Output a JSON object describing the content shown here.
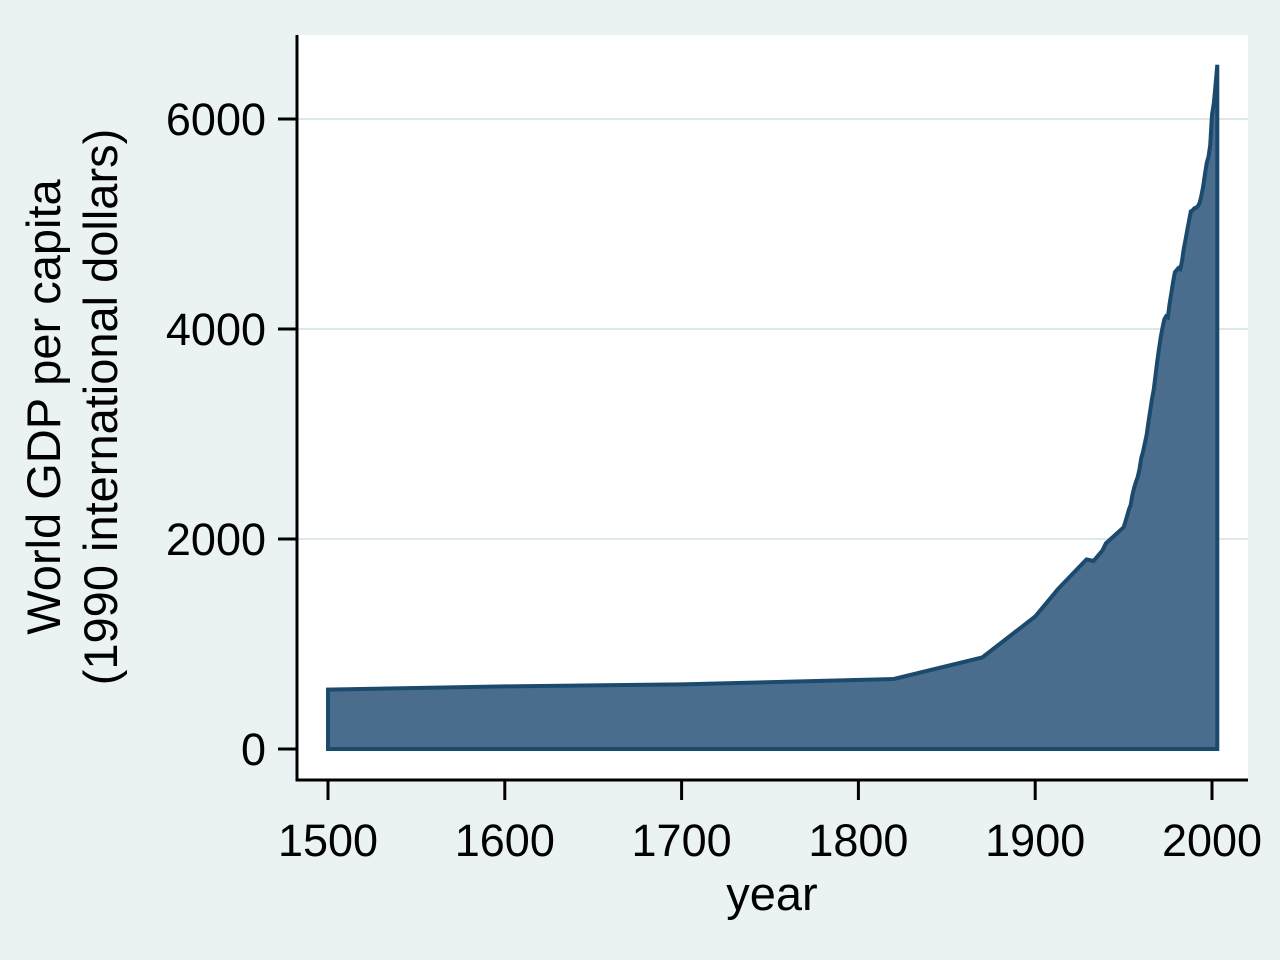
{
  "figure": {
    "kind": "stata-style area chart",
    "background_color": "#eaf2f3",
    "plot_background_color": "#ffffff"
  },
  "chart_data": {
    "type": "area",
    "title": "",
    "xlabel": "year",
    "ylabel_lines": [
      "World GDP per capita",
      "(1990 international dollars)"
    ],
    "x_ticks": [
      1500,
      1600,
      1700,
      1800,
      1900,
      2000
    ],
    "y_ticks": [
      0,
      2000,
      4000,
      6000
    ],
    "xlim": [
      1483,
      2020
    ],
    "ylim": [
      0,
      6800
    ],
    "grid": "horizontal gridlines at 2000, 4000, 6000",
    "legend": "none",
    "series": [
      {
        "name": "World GDP per capita (1990 international dollars)",
        "fill_color": "#4a6d8e",
        "line_color": "#1c4a6d",
        "baseline": 0,
        "points": [
          [
            1500,
            566
          ],
          [
            1600,
            596
          ],
          [
            1700,
            615
          ],
          [
            1820,
            667
          ],
          [
            1870,
            871
          ],
          [
            1900,
            1262
          ],
          [
            1913,
            1526
          ],
          [
            1929,
            1806
          ],
          [
            1933,
            1790
          ],
          [
            1938,
            1890
          ],
          [
            1940,
            1958
          ],
          [
            1950,
            2111
          ],
          [
            1951,
            2165
          ],
          [
            1952,
            2220
          ],
          [
            1953,
            2280
          ],
          [
            1954,
            2325
          ],
          [
            1955,
            2420
          ],
          [
            1956,
            2490
          ],
          [
            1957,
            2545
          ],
          [
            1958,
            2590
          ],
          [
            1959,
            2665
          ],
          [
            1960,
            2773
          ],
          [
            1961,
            2830
          ],
          [
            1962,
            2910
          ],
          [
            1963,
            2990
          ],
          [
            1964,
            3110
          ],
          [
            1965,
            3215
          ],
          [
            1966,
            3330
          ],
          [
            1967,
            3420
          ],
          [
            1968,
            3550
          ],
          [
            1969,
            3690
          ],
          [
            1970,
            3810
          ],
          [
            1971,
            3920
          ],
          [
            1972,
            4010
          ],
          [
            1973,
            4091
          ],
          [
            1974,
            4120
          ],
          [
            1975,
            4110
          ],
          [
            1976,
            4240
          ],
          [
            1977,
            4340
          ],
          [
            1978,
            4450
          ],
          [
            1979,
            4540
          ],
          [
            1980,
            4560
          ],
          [
            1981,
            4580
          ],
          [
            1982,
            4570
          ],
          [
            1983,
            4640
          ],
          [
            1984,
            4760
          ],
          [
            1985,
            4850
          ],
          [
            1986,
            4940
          ],
          [
            1987,
            5030
          ],
          [
            1988,
            5120
          ],
          [
            1989,
            5130
          ],
          [
            1990,
            5150
          ],
          [
            1991,
            5155
          ],
          [
            1992,
            5170
          ],
          [
            1993,
            5200
          ],
          [
            1994,
            5270
          ],
          [
            1995,
            5360
          ],
          [
            1996,
            5470
          ],
          [
            1997,
            5580
          ],
          [
            1998,
            5640
          ],
          [
            1999,
            5750
          ],
          [
            2000,
            6038
          ],
          [
            2001,
            6150
          ],
          [
            2002,
            6320
          ],
          [
            2003,
            6516
          ]
        ]
      }
    ],
    "colors": {
      "area_fill": "#4a6d8e",
      "area_outline": "#1c4a6d",
      "gridline": "#dbe8ed",
      "axis_line": "#000000",
      "text": "#000000",
      "canvas_background": "#eaf2f3",
      "plot_background": "#ffffff"
    }
  }
}
